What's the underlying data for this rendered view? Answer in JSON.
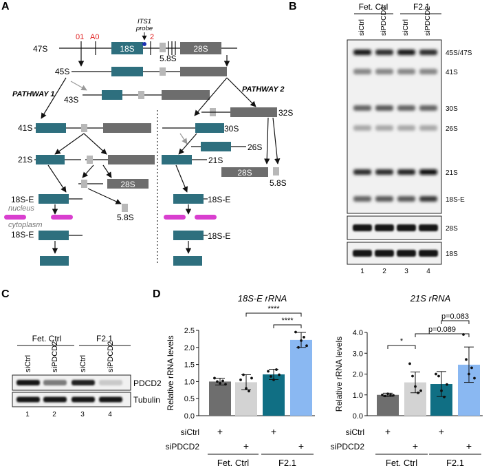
{
  "panel_letters": [
    "A",
    "B",
    "C",
    "D"
  ],
  "colors": {
    "s18": "#2e6f7e",
    "s28": "#6d6d6d",
    "s58": "#b8b8b8",
    "site_red": "#e02020",
    "magenta": "#d93fcf",
    "probe": "#1a2fb0",
    "bar_fet_sictrl": "#6e6e6e",
    "bar_fet_sipdcd2": "#d3d3d3",
    "bar_f21_sictrl": "#106f84",
    "bar_f21_sipdcd2": "#8ab8f2"
  },
  "pathway": {
    "sites": [
      "01",
      "A0",
      "2"
    ],
    "probe_label": "ITS1\nprobe",
    "pathway1": "PATHWAY 1",
    "pathway2": "PATHWAY 2",
    "nucleus": "nucleus",
    "cytoplasm": "cytoplasm",
    "labels": {
      "p47S": "47S",
      "p45S": "45S",
      "p43S": "43S",
      "p41S": "41S",
      "p21S_left": "21S",
      "p18SE_1": "18S-E",
      "p18SE_2": "18S-E",
      "p30S": "30S",
      "p32S": "32S",
      "p26S": "26S",
      "p21S_right": "21S",
      "p18SE_3": "18S-E",
      "p18SE_4": "18S-E",
      "box18S": "18S",
      "box28S": "28S",
      "box28S_b": "28S",
      "box28S_c": "28S",
      "t58S_a": "5.8S",
      "t58S_b": "5.8S",
      "t58S_c": "5.8S"
    }
  },
  "northern": {
    "group1": "Fet. Ctrl",
    "group2": "F2.1",
    "lanes": [
      "siCtrl",
      "siPDCD2",
      "siCtrl",
      "siPDCD2"
    ],
    "lane_numbers": [
      "1",
      "2",
      "3",
      "4"
    ],
    "bands": [
      "45S/47S",
      "41S",
      "30S",
      "26S",
      "21S",
      "18S-E"
    ],
    "loading": [
      "28S",
      "18S"
    ],
    "intensity": {
      "45S/47S": [
        0.95,
        0.85,
        0.95,
        0.85
      ],
      "41S": [
        0.45,
        0.45,
        0.45,
        0.45
      ],
      "30S": [
        0.6,
        0.65,
        0.6,
        0.6
      ],
      "26S": [
        0.3,
        0.3,
        0.3,
        0.3
      ],
      "21S": [
        0.85,
        0.85,
        0.9,
        1.0
      ],
      "18S-E": [
        0.6,
        0.65,
        0.65,
        0.8
      ]
    }
  },
  "western": {
    "group1": "Fet. Ctrl",
    "group2": "F2.1",
    "lanes": [
      "siCtrl",
      "siPDCD2",
      "siCtrl",
      "siPDCD2"
    ],
    "lane_numbers": [
      "1",
      "2",
      "3",
      "4"
    ],
    "proteins": [
      "PDCD2",
      "Tubulin"
    ],
    "intensity": {
      "PDCD2": [
        0.95,
        0.5,
        0.9,
        0.15
      ],
      "Tubulin": [
        0.95,
        0.95,
        0.95,
        0.95
      ]
    }
  },
  "chart_data": [
    {
      "type": "bar",
      "title": "18S-E rRNA",
      "xlabel": "",
      "ylabel": "Relative rRNA levels",
      "ylim": [
        0,
        2.5
      ],
      "yticks": [
        "0.0",
        "0.5",
        "1.0",
        "1.5",
        "2.0",
        "2.5"
      ],
      "categories": [
        "Fet. Ctrl siCtrl",
        "Fet. Ctrl siPDCD2",
        "F2.1 siCtrl",
        "F2.1 siPDCD2"
      ],
      "values": [
        1.0,
        0.98,
        1.21,
        2.22
      ],
      "errors": [
        0.1,
        0.22,
        0.15,
        0.22
      ],
      "points": [
        [
          1.1,
          1.0,
          0.95,
          1.02,
          0.92
        ],
        [
          1.05,
          1.2,
          0.8,
          0.72,
          1.1
        ],
        [
          1.3,
          1.15,
          1.05,
          1.35,
          1.2
        ],
        [
          2.45,
          2.0,
          2.2,
          2.3,
          2.05
        ]
      ],
      "row_labels": [
        "siCtrl",
        "siPDCD2"
      ],
      "sictrl_marks": [
        "+",
        "",
        "+",
        ""
      ],
      "sipdcd2_marks": [
        "",
        "+",
        "",
        "+"
      ],
      "groups": [
        "Fet. Ctrl",
        "F2.1"
      ],
      "annotations": [
        "****",
        "****"
      ]
    },
    {
      "type": "bar",
      "title": "21S rRNA",
      "xlabel": "",
      "ylabel": "Relative rRNA levels",
      "ylim": [
        0,
        4.0
      ],
      "yticks": [
        "0.0",
        "1.0",
        "2.0",
        "3.0",
        "4.0"
      ],
      "categories": [
        "Fet. Ctrl siCtrl",
        "Fet. Ctrl siPDCD2",
        "F2.1 siCtrl",
        "F2.1 siPDCD2"
      ],
      "values": [
        1.0,
        1.6,
        1.52,
        2.45
      ],
      "errors": [
        0.08,
        0.5,
        0.6,
        0.85
      ],
      "points": [
        [
          1.0,
          0.95,
          1.05,
          1.0,
          0.98
        ],
        [
          2.5,
          1.9,
          1.4,
          1.1,
          1.2
        ],
        [
          2.0,
          1.9,
          1.2,
          0.9,
          1.5
        ],
        [
          3.9,
          2.7,
          2.0,
          2.3,
          1.8
        ]
      ],
      "row_labels": [
        "siCtrl",
        "siPDCD2"
      ],
      "sictrl_marks": [
        "+",
        "",
        "+",
        ""
      ],
      "sipdcd2_marks": [
        "",
        "+",
        "",
        "+"
      ],
      "groups": [
        "Fet. Ctrl",
        "F2.1"
      ],
      "annotations": [
        "*",
        "p=0.089",
        "p=0.083"
      ]
    }
  ]
}
